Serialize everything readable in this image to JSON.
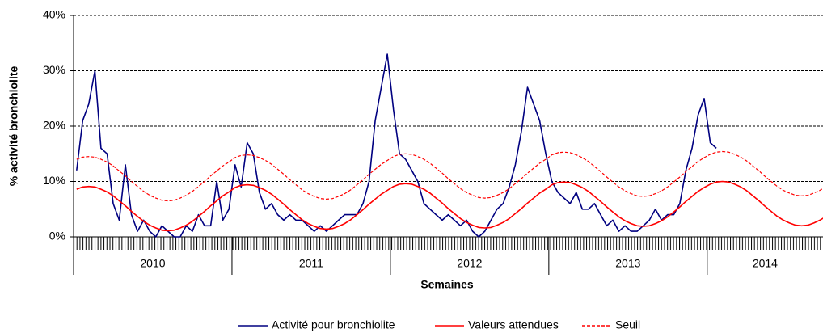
{
  "chart_data": {
    "type": "line",
    "ylabel": "% activité bronchiolite",
    "xlabel": "Semaines",
    "year_labels": [
      "2010",
      "2011",
      "2012",
      "2013",
      "2014"
    ],
    "ylim": [
      0,
      40
    ],
    "yticks": [
      {
        "value": 0,
        "label": "0%"
      },
      {
        "value": 10,
        "label": "10%"
      },
      {
        "value": 20,
        "label": "20%"
      },
      {
        "value": 30,
        "label": "30%"
      },
      {
        "value": 40,
        "label": "40%"
      }
    ],
    "grid": true,
    "legend": "bottom",
    "series": [
      {
        "name": "Activité pour bronchiolite",
        "color": "#000080",
        "dash": false,
        "values": [
          12,
          21,
          24,
          30,
          16,
          15,
          6,
          3,
          13,
          4,
          1,
          3,
          1,
          0,
          2,
          1,
          0,
          0,
          2,
          1,
          4,
          2,
          2,
          10,
          3,
          5,
          13,
          9,
          17,
          15,
          8,
          5,
          6,
          4,
          3,
          4,
          3,
          3,
          2,
          1,
          2,
          1,
          2,
          3,
          4,
          4,
          4,
          6,
          10,
          21,
          27,
          33,
          23,
          15,
          14,
          12,
          10,
          6,
          5,
          4,
          3,
          4,
          3,
          2,
          3,
          1,
          0,
          1,
          3,
          5,
          6,
          9,
          13,
          19,
          27,
          24,
          21,
          15,
          10,
          8,
          7,
          6,
          8,
          5,
          5,
          6,
          4,
          2,
          3,
          1,
          2,
          1,
          1,
          2,
          3,
          5,
          3,
          4,
          4,
          6,
          12,
          16,
          22,
          25,
          17,
          16,
          null,
          null,
          null,
          null,
          null,
          null,
          null,
          null,
          null,
          null,
          null,
          null,
          null,
          null,
          null,
          null,
          null
        ]
      },
      {
        "name": "Valeurs attendues",
        "color": "#ff0000",
        "dash": false,
        "values": [
          8.6,
          9.0,
          9.1,
          9.0,
          8.6,
          8.1,
          7.4,
          6.5,
          5.6,
          4.6,
          3.7,
          2.8,
          2.1,
          1.6,
          1.2,
          1.1,
          1.2,
          1.6,
          2.1,
          2.8,
          3.7,
          4.6,
          5.6,
          6.5,
          7.4,
          8.1,
          8.9,
          9.3,
          9.4,
          9.3,
          8.9,
          8.4,
          7.7,
          6.8,
          5.9,
          4.9,
          4.0,
          3.1,
          2.4,
          1.9,
          1.5,
          1.4,
          1.5,
          1.9,
          2.4,
          3.1,
          4.0,
          4.9,
          5.9,
          6.8,
          7.7,
          8.4,
          9.1,
          9.5,
          9.6,
          9.5,
          9.1,
          8.6,
          7.9,
          7.0,
          6.1,
          5.1,
          4.2,
          3.3,
          2.6,
          2.1,
          1.7,
          1.6,
          1.7,
          2.1,
          2.6,
          3.3,
          4.2,
          5.1,
          6.1,
          7.0,
          7.9,
          8.6,
          9.4,
          9.8,
          9.9,
          9.8,
          9.4,
          8.9,
          8.2,
          7.3,
          6.4,
          5.4,
          4.5,
          3.6,
          2.9,
          2.4,
          2.0,
          1.9,
          2.0,
          2.4,
          2.9,
          3.6,
          4.5,
          5.4,
          6.4,
          7.3,
          8.2,
          8.9,
          9.5,
          9.9,
          10.0,
          9.9,
          9.5,
          9.0,
          8.3,
          7.4,
          6.5,
          5.5,
          4.6,
          3.7,
          3.0,
          2.5,
          2.1,
          2.0,
          2.1,
          2.5,
          3.0,
          3.7,
          4.6
        ]
      },
      {
        "name": "Seuil",
        "color": "#ff0000",
        "dash": true,
        "values": [
          14.0,
          14.4,
          14.5,
          14.4,
          14.0,
          13.5,
          12.8,
          11.9,
          11.0,
          10.0,
          9.1,
          8.2,
          7.5,
          7.0,
          6.6,
          6.5,
          6.6,
          7.0,
          7.5,
          8.2,
          9.1,
          10.0,
          11.0,
          11.9,
          12.8,
          13.5,
          14.3,
          14.7,
          14.8,
          14.7,
          14.3,
          13.8,
          13.1,
          12.2,
          11.3,
          10.3,
          9.4,
          8.5,
          7.8,
          7.3,
          6.9,
          6.8,
          6.9,
          7.3,
          7.8,
          8.5,
          9.4,
          10.3,
          11.3,
          12.2,
          13.1,
          13.8,
          14.5,
          14.9,
          15.0,
          14.9,
          14.5,
          14.0,
          13.3,
          12.4,
          11.5,
          10.5,
          9.6,
          8.7,
          8.0,
          7.5,
          7.1,
          7.0,
          7.1,
          7.5,
          8.0,
          8.7,
          9.6,
          10.5,
          11.5,
          12.4,
          13.3,
          14.0,
          14.8,
          15.2,
          15.3,
          15.2,
          14.8,
          14.3,
          13.6,
          12.7,
          11.8,
          10.8,
          9.9,
          9.0,
          8.3,
          7.8,
          7.4,
          7.3,
          7.4,
          7.8,
          8.3,
          9.0,
          9.9,
          10.8,
          11.8,
          12.7,
          13.6,
          14.3,
          14.9,
          15.3,
          15.4,
          15.3,
          14.9,
          14.4,
          13.7,
          12.8,
          11.9,
          10.9,
          10.0,
          9.1,
          8.4,
          7.9,
          7.5,
          7.4,
          7.5,
          7.9,
          8.4,
          9.1,
          10.0
        ]
      }
    ]
  }
}
